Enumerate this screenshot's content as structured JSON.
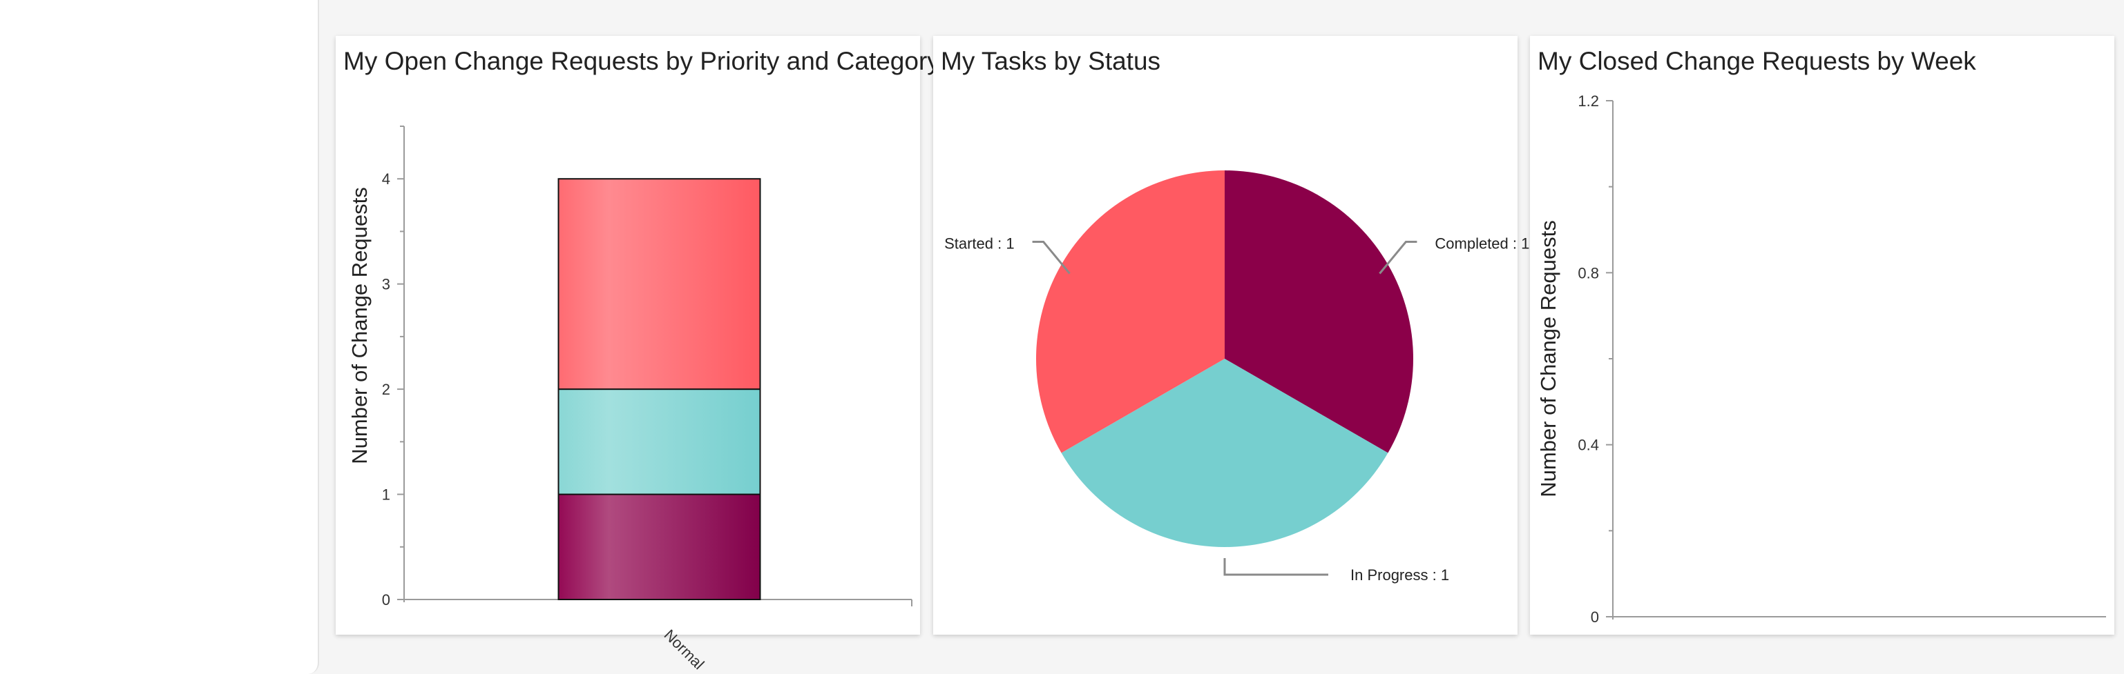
{
  "dashboard": {
    "cards": [
      {
        "title": "My Open Change Requests by Priority and Category"
      },
      {
        "title": "My Tasks by Status"
      },
      {
        "title": "My Closed Change Requests by Week"
      }
    ]
  },
  "chart_data": [
    {
      "type": "bar",
      "stacked": true,
      "title": "My Open Change Requests by Priority and Category",
      "xlabel": "",
      "ylabel": "Number of Change Requests",
      "categories": [
        "Normal"
      ],
      "series": [
        {
          "values": [
            1
          ],
          "color": "#8b0049"
        },
        {
          "values": [
            1
          ],
          "color": "#76cfcf"
        },
        {
          "values": [
            2
          ],
          "color": "#ff5a62"
        }
      ],
      "ylim": [
        0,
        4.5
      ],
      "yticks": [
        0,
        1,
        2,
        3,
        4
      ],
      "grid": false
    },
    {
      "type": "pie",
      "title": "My Tasks by Status",
      "slices": [
        {
          "label": "Completed",
          "value": 1,
          "color": "#8b0049",
          "label_text": "Completed : 1"
        },
        {
          "label": "In Progress",
          "value": 1,
          "color": "#76cfcf",
          "label_text": "In Progress : 1"
        },
        {
          "label": "Started",
          "value": 1,
          "color": "#ff5a62",
          "label_text": "Started : 1"
        }
      ]
    },
    {
      "type": "line",
      "title": "My Closed Change Requests by Week",
      "xlabel": "",
      "ylabel": "Number of Change Requests",
      "series": [],
      "ylim": [
        0,
        1.2
      ],
      "yticks": [
        0,
        0.4,
        0.8,
        1.2
      ],
      "grid": false
    }
  ]
}
